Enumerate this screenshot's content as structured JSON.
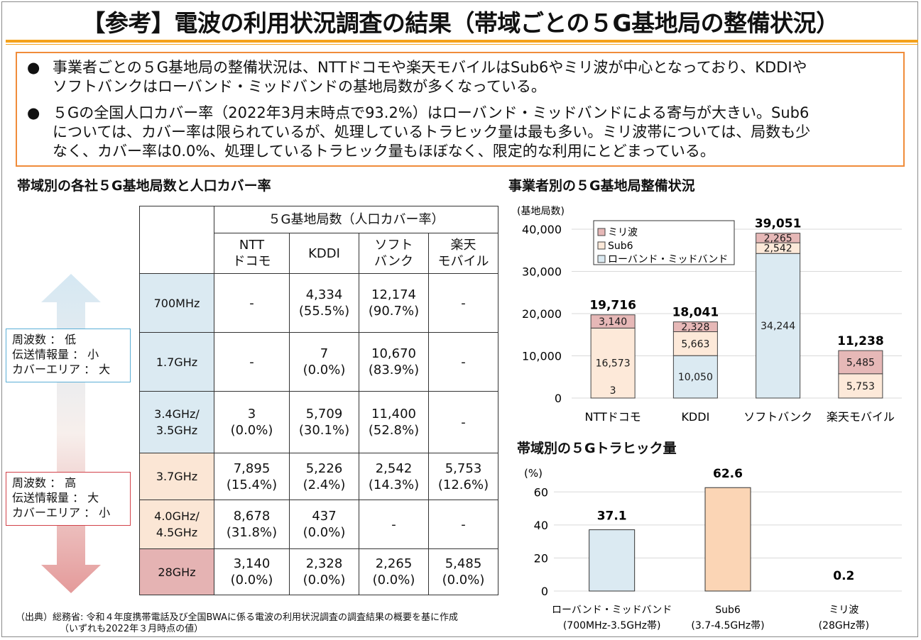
{
  "title": "【参考】電波の利用状況調査の結果（帯域ごとの５G基地局の整備状況）",
  "summary": {
    "bullet_symbol": "●",
    "bullets": [
      {
        "line1": "事業者ごとの５G基地局の整備状況は、NTTドコモや楽天モバイルはSub6やミリ波が中心となっており、KDDIや",
        "line2": "ソフトバンクはローバンド・ミッドバンドの基地局数が多くなっている。"
      },
      {
        "line1": "５Gの全国人口カバー率（2022年3月末時点で93.2%）はローバンド・ミッドバンドによる寄与が大きい。Sub6",
        "line2": "については、カバー率は限られているが、処理しているトラヒック量は最も多い。ミリ波帯については、局数も少",
        "line3": "なく、カバー率は0.0%、処理しているトラヒック量もほぼなく、限定的な利用にとどまっている。"
      }
    ]
  },
  "left_section_title": "帯域別の各社５G基地局数と人口カバー率",
  "table": {
    "group_header": "５G基地局数（人口カバー率）",
    "columns": [
      {
        "line1": "NTT",
        "line2": "ドコモ"
      },
      {
        "line1": "KDDI",
        "line2": ""
      },
      {
        "line1": "ソフト",
        "line2": "バンク"
      },
      {
        "line1": "楽天",
        "line2": "モバイル"
      }
    ],
    "rows": [
      {
        "band1": "700MHz",
        "band2": "",
        "color": "#dbeaf2",
        "cells": [
          {
            "v": "-",
            "p": ""
          },
          {
            "v": "4,334",
            "p": "(55.5%)"
          },
          {
            "v": "12,174",
            "p": "(90.7%)"
          },
          {
            "v": "-",
            "p": ""
          }
        ]
      },
      {
        "band1": "1.7GHz",
        "band2": "",
        "color": "#dbeaf2",
        "cells": [
          {
            "v": "-",
            "p": ""
          },
          {
            "v": "7",
            "p": "(0.0%)"
          },
          {
            "v": "10,670",
            "p": "(83.9%)"
          },
          {
            "v": "-",
            "p": ""
          }
        ]
      },
      {
        "band1": "3.4GHz/",
        "band2": "3.5GHz",
        "color": "#dbeaf2",
        "cells": [
          {
            "v": "3",
            "p": "(0.0%)"
          },
          {
            "v": "5,709",
            "p": "(30.1%)"
          },
          {
            "v": "11,400",
            "p": "(52.8%)"
          },
          {
            "v": "-",
            "p": ""
          }
        ]
      },
      {
        "band1": "3.7GHz",
        "band2": "",
        "color": "#fbe6d5",
        "cells": [
          {
            "v": "7,895",
            "p": "(15.4%)"
          },
          {
            "v": "5,226",
            "p": "(2.4%)"
          },
          {
            "v": "2,542",
            "p": "(14.3%)"
          },
          {
            "v": "5,753",
            "p": "(12.6%)"
          }
        ]
      },
      {
        "band1": "4.0GHz/",
        "band2": "4.5GHz",
        "color": "#fbe6d5",
        "cells": [
          {
            "v": "8,678",
            "p": "(31.8%)"
          },
          {
            "v": "437",
            "p": "(0.0%)"
          },
          {
            "v": "-",
            "p": ""
          },
          {
            "v": "-",
            "p": ""
          }
        ]
      },
      {
        "band1": "28GHz",
        "band2": "",
        "color": "#e5b3b3",
        "cells": [
          {
            "v": "3,140",
            "p": "(0.0%)"
          },
          {
            "v": "2,328",
            "p": "(0.0%)"
          },
          {
            "v": "2,265",
            "p": "(0.0%)"
          },
          {
            "v": "5,485",
            "p": "(0.0%)"
          }
        ]
      }
    ]
  },
  "freq_low": {
    "line1": "周波数 ： 低",
    "line2": "伝送情報量 ： 小",
    "line3": "カバーエリア ： 大",
    "border": "#5aaed6"
  },
  "freq_high": {
    "line1": "周波数 ： 高",
    "line2": "伝送情報量 ： 大",
    "line3": "カバーエリア ： 小",
    "border": "#d2424a"
  },
  "source": {
    "line1": "（出典）総務省: 令和４年度携帯電話及び全国BWAに係る電波の利用状況調査の調査結果の概要を基に作成",
    "line2": "（いずれも2022年３月時点の値）"
  },
  "chart_data": [
    {
      "type": "bar",
      "stacked": true,
      "title": "事業者別の５G基地局整備状況",
      "ylabel": "(基地局数)",
      "ylim": [
        0,
        40000
      ],
      "yticks": [
        "0",
        "10,000",
        "20,000",
        "30,000",
        "40,000"
      ],
      "grid": true,
      "legend_position": "top-left",
      "categories": [
        "NTTドコモ",
        "KDDI",
        "ソフトバンク",
        "楽天モバイル"
      ],
      "series": [
        {
          "name": "ローバンド・ミッドバンド",
          "color": "#dbeaf2",
          "values": [
            3,
            10050,
            34244,
            0
          ],
          "labels": [
            "3",
            "10,050",
            "34,244",
            ""
          ]
        },
        {
          "name": "Sub6",
          "color": "#fde9d9",
          "values": [
            16573,
            5663,
            2542,
            5753
          ],
          "labels": [
            "16,573",
            "5,663",
            "2,542",
            "5,753"
          ]
        },
        {
          "name": "ミリ波",
          "color": "#e6b8b7",
          "values": [
            3140,
            2328,
            2265,
            5485
          ],
          "labels": [
            "3,140",
            "2,328",
            "2,265",
            "5,485"
          ]
        }
      ],
      "totals": [
        "19,716",
        "18,041",
        "39,051",
        "11,238"
      ],
      "legend_order": [
        "ミリ波",
        "Sub6",
        "ローバンド・ミッドバンド"
      ]
    },
    {
      "type": "bar",
      "title": "帯域別の５Gトラヒック量",
      "ylabel": "(%)",
      "ylim": [
        0,
        70
      ],
      "yticks": [
        "0",
        "20",
        "40",
        "60"
      ],
      "grid": true,
      "categories": [
        {
          "line1": "ローバンド・ミッドバンド",
          "line2": "(700MHz-3.5GHz帯)"
        },
        {
          "line1": "Sub6",
          "line2": "(3.7-4.5GHz帯)"
        },
        {
          "line1": "ミリ波",
          "line2": "(28GHz帯)"
        }
      ],
      "values": [
        37.1,
        62.6,
        0.2
      ],
      "value_labels": [
        "37.1",
        "62.6",
        "0.2"
      ],
      "colors": [
        "#dbeaf2",
        "#fbd5b5",
        "#e6b8b7"
      ]
    }
  ]
}
